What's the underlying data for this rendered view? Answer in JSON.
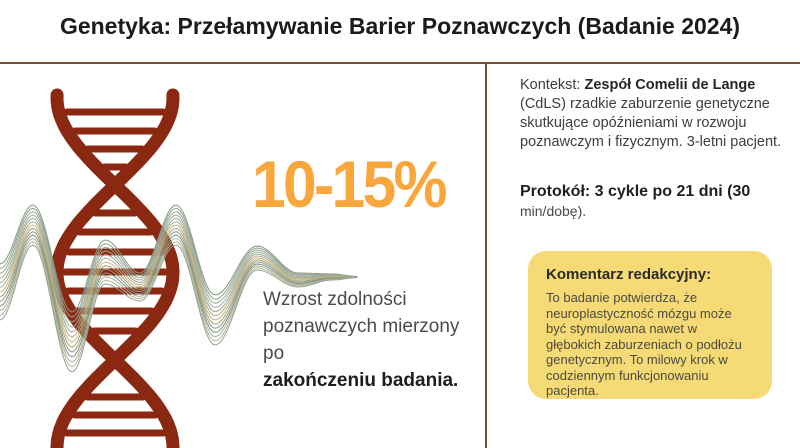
{
  "header": {
    "title": "Genetyka: Przełamywanie Barier Poznawczych (Badanie 2024)"
  },
  "stat": {
    "value": "10-15%",
    "caption_line1": "Wzrost zdolności",
    "caption_line2": "poznawczych mierzony po",
    "caption_bold": "zakończeniu badania."
  },
  "context": {
    "label": "Kontekst:",
    "highlight": "Zespół Comelii de Lange",
    "body": "(CdLS) rzadkie zaburzenie genetyczne skutkujące opóźnieniami w rozwoju poznawczym i fizycznym. 3-letni pacjent."
  },
  "protocol": {
    "bold": "Protokół: 3 cykle po 21 dni (30",
    "regular": "min/dobę)."
  },
  "commentary": {
    "title": "Komentarz redakcyjny:",
    "body": "To badanie potwierdza, że neuroplastyczność mózgu może być stymulowana nawet w głębokich zaburzeniach o podłożu genetycznym. To milowy krok w codziennym funkcjonowaniu pacjenta."
  },
  "colors": {
    "accent_orange": "#F9A63C",
    "dna_red": "#8B2811",
    "commentary_bg": "#F5DA75",
    "divider": "#7A4A38"
  },
  "illustrations": {
    "dna": "dna-double-helix",
    "waves": "brainwave-line-bundle",
    "wave_palette": [
      "#87977f",
      "#8fa08b",
      "#98a897",
      "#a2b0a2",
      "#9aa78f",
      "#b3ab82",
      "#c4b782",
      "#ab9f6f",
      "#8e9d8a",
      "#7f8f7c",
      "#a5b2a0",
      "#b9b490",
      "#91a193"
    ]
  }
}
